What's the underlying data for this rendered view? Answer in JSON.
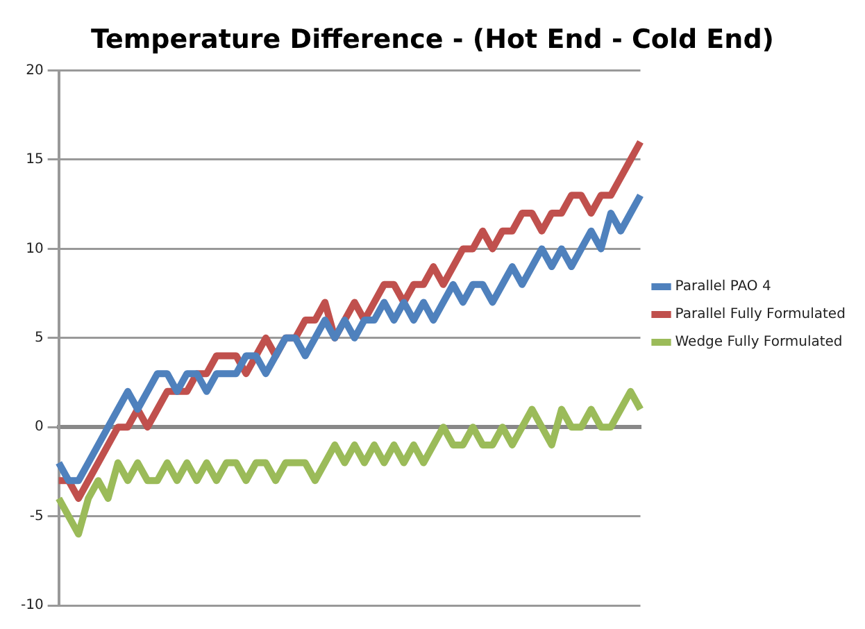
{
  "chart_data": {
    "type": "line",
    "title": "Temperature Difference - (Hot End - Cold End)",
    "categories": [
      null,
      null,
      null,
      null,
      null,
      null,
      null,
      null,
      null,
      null,
      null,
      null,
      null,
      null,
      null,
      null,
      null,
      null,
      null,
      null,
      null,
      null,
      null,
      null,
      null,
      null,
      null,
      null,
      null,
      null,
      null,
      null,
      null,
      null,
      null,
      null,
      null,
      null,
      null,
      null,
      null,
      null,
      null,
      null,
      null,
      null,
      null,
      null,
      null,
      null,
      null,
      null,
      null,
      null,
      null,
      null,
      null,
      null,
      null,
      null
    ],
    "series": [
      {
        "name": "Parallel PAO 4",
        "color": "#4f81bd",
        "values": [
          -2,
          -3,
          -3,
          -2,
          -1,
          0,
          1,
          2,
          1,
          2,
          3,
          3,
          2,
          3,
          3,
          2,
          3,
          3,
          3,
          4,
          4,
          3,
          4,
          5,
          5,
          4,
          5,
          6,
          5,
          6,
          5,
          6,
          6,
          7,
          6,
          7,
          6,
          7,
          6,
          7,
          8,
          7,
          8,
          8,
          7,
          8,
          9,
          8,
          9,
          10,
          9,
          10,
          9,
          10,
          11,
          10,
          12,
          11,
          12,
          13
        ]
      },
      {
        "name": "Parallel Fully Formulated",
        "color": "#c0504d",
        "values": [
          -3,
          -3,
          -4,
          -3,
          -2,
          -1,
          0,
          0,
          1,
          0,
          1,
          2,
          2,
          2,
          3,
          3,
          4,
          4,
          4,
          3,
          4,
          5,
          4,
          5,
          5,
          6,
          6,
          7,
          5,
          6,
          7,
          6,
          7,
          8,
          8,
          7,
          8,
          8,
          9,
          8,
          9,
          10,
          10,
          11,
          10,
          11,
          11,
          12,
          12,
          11,
          12,
          12,
          13,
          13,
          12,
          13,
          13,
          14,
          15,
          16
        ]
      },
      {
        "name": "Wedge Fully Formulated",
        "color": "#9bbb59",
        "values": [
          -4,
          -5,
          -6,
          -4,
          -3,
          -4,
          -2,
          -3,
          -2,
          -3,
          -3,
          -2,
          -3,
          -2,
          -3,
          -2,
          -3,
          -2,
          -2,
          -3,
          -2,
          -2,
          -3,
          -2,
          -2,
          -2,
          -3,
          -2,
          -1,
          -2,
          -1,
          -2,
          -1,
          -2,
          -1,
          -2,
          -1,
          -2,
          -1,
          0,
          -1,
          -1,
          0,
          -1,
          -1,
          0,
          -1,
          0,
          1,
          0,
          -1,
          1,
          0,
          0,
          1,
          0,
          0,
          1,
          2,
          1
        ]
      }
    ],
    "ylim": [
      -10,
      20
    ],
    "yticks": [
      -10,
      -5,
      0,
      5,
      10,
      15,
      20
    ],
    "grid": "y",
    "legend": "right",
    "tick_labels": "y",
    "marker": "none"
  }
}
